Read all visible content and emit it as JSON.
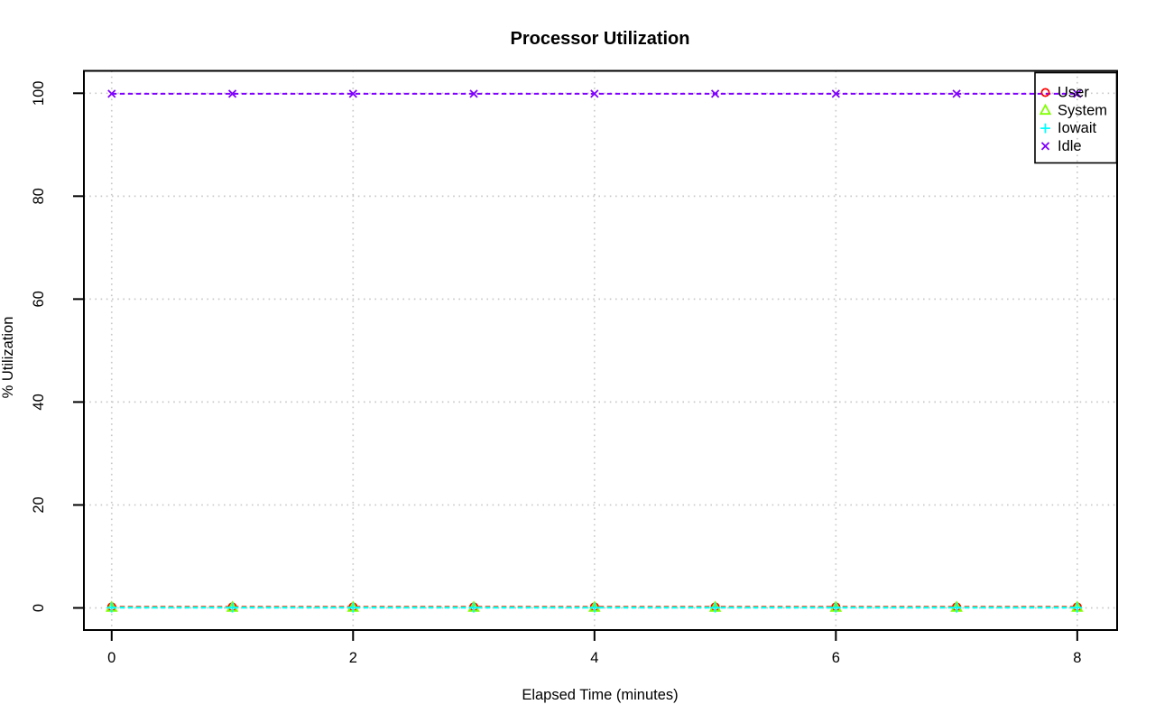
{
  "chart_data": {
    "type": "line",
    "title": "Processor Utilization",
    "xlabel": "Elapsed Time (minutes)",
    "ylabel": "% Utilization",
    "x": [
      0,
      1,
      2,
      3,
      4,
      5,
      6,
      7,
      8
    ],
    "series": [
      {
        "name": "User",
        "color": "#FF0000",
        "marker": "circle",
        "line_style": "dashed",
        "values": [
          0.2,
          0.2,
          0.2,
          0.2,
          0.2,
          0.2,
          0.2,
          0.2,
          0.2
        ]
      },
      {
        "name": "System",
        "color": "#80FF00",
        "marker": "triangle",
        "line_style": "dashed",
        "values": [
          0.1,
          0.1,
          0.1,
          0.1,
          0.1,
          0.1,
          0.1,
          0.1,
          0.1
        ]
      },
      {
        "name": "Iowait",
        "color": "#00FFFF",
        "marker": "plus",
        "line_style": "dashed",
        "values": [
          0.05,
          0.05,
          0.05,
          0.05,
          0.05,
          0.05,
          0.05,
          0.05,
          0.05
        ]
      },
      {
        "name": "Idle",
        "color": "#8000FF",
        "marker": "x",
        "line_style": "dashed",
        "values": [
          99.9,
          99.9,
          99.9,
          99.9,
          99.9,
          99.9,
          99.9,
          99.9,
          99.9
        ]
      }
    ],
    "x_ticks": [
      "0",
      "2",
      "4",
      "6",
      "8"
    ],
    "x_tick_values": [
      0,
      2,
      4,
      6,
      8
    ],
    "y_ticks": [
      "0",
      "20",
      "40",
      "60",
      "80",
      "100"
    ],
    "y_tick_values": [
      0,
      20,
      40,
      60,
      80,
      100
    ],
    "x_range": [
      -0.23,
      8.33
    ],
    "y_range": [
      -4.3,
      104.35
    ],
    "grid": true,
    "grid_color": "#C9C9C9",
    "axis_color": "#000000",
    "legend": {
      "position": "topright",
      "entries": [
        "User",
        "System",
        "Iowait",
        "Idle"
      ]
    }
  }
}
